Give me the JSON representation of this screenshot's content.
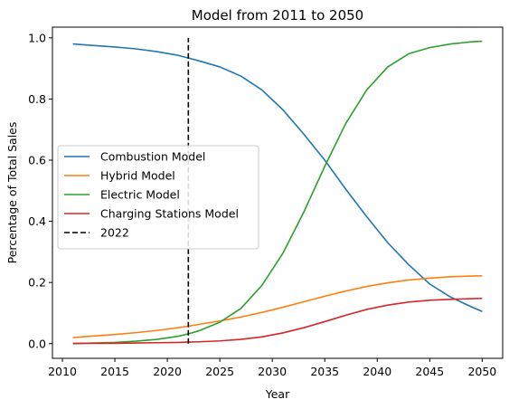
{
  "chart_data": {
    "type": "line",
    "title": "Model from 2011 to 2050",
    "xlabel": "Year",
    "ylabel": "Percentage of Total Sales",
    "xlim": [
      2009.05,
      2051.95
    ],
    "ylim": [
      -0.048,
      1.035
    ],
    "xticks": [
      2010,
      2015,
      2020,
      2025,
      2030,
      2035,
      2040,
      2045,
      2050
    ],
    "xtick_labels": [
      "2010",
      "2015",
      "2020",
      "2025",
      "2030",
      "2035",
      "2040",
      "2045",
      "2050"
    ],
    "yticks": [
      0.0,
      0.2,
      0.4,
      0.6,
      0.8,
      1.0
    ],
    "ytick_labels": [
      "0.0",
      "0.2",
      "0.4",
      "0.6",
      "0.8",
      "1.0"
    ],
    "legend_position": "center-left",
    "series": [
      {
        "name": "Combustion Model",
        "color": "#1f77b4",
        "style": "solid",
        "x": [
          2011,
          2013,
          2015,
          2017,
          2019,
          2021,
          2022,
          2023,
          2025,
          2027,
          2029,
          2031,
          2033,
          2035,
          2037,
          2039,
          2041,
          2043,
          2045,
          2047,
          2049,
          2050
        ],
        "y": [
          0.98,
          0.975,
          0.97,
          0.964,
          0.955,
          0.943,
          0.934,
          0.925,
          0.905,
          0.875,
          0.83,
          0.765,
          0.685,
          0.6,
          0.505,
          0.415,
          0.33,
          0.258,
          0.195,
          0.152,
          0.12,
          0.105
        ]
      },
      {
        "name": "Hybrid Model",
        "color": "#ff7f0e",
        "style": "solid",
        "x": [
          2011,
          2013,
          2015,
          2017,
          2019,
          2021,
          2022,
          2023,
          2025,
          2027,
          2029,
          2031,
          2033,
          2035,
          2037,
          2039,
          2041,
          2043,
          2045,
          2047,
          2049,
          2050
        ],
        "y": [
          0.02,
          0.025,
          0.03,
          0.036,
          0.043,
          0.052,
          0.057,
          0.063,
          0.074,
          0.087,
          0.102,
          0.119,
          0.137,
          0.155,
          0.172,
          0.187,
          0.199,
          0.208,
          0.214,
          0.219,
          0.221,
          0.222
        ]
      },
      {
        "name": "Electric Model",
        "color": "#2ca02c",
        "style": "solid",
        "x": [
          2011,
          2013,
          2015,
          2017,
          2019,
          2021,
          2022,
          2023,
          2025,
          2027,
          2029,
          2031,
          2033,
          2035,
          2037,
          2039,
          2041,
          2043,
          2045,
          2047,
          2049,
          2050
        ],
        "y": [
          0.0,
          0.002,
          0.004,
          0.008,
          0.014,
          0.024,
          0.032,
          0.042,
          0.07,
          0.115,
          0.19,
          0.295,
          0.43,
          0.58,
          0.72,
          0.83,
          0.905,
          0.948,
          0.968,
          0.98,
          0.987,
          0.989
        ]
      },
      {
        "name": "Charging Stations Model",
        "color": "#d62728",
        "style": "solid",
        "x": [
          2011,
          2013,
          2015,
          2017,
          2019,
          2021,
          2022,
          2023,
          2025,
          2027,
          2029,
          2031,
          2033,
          2035,
          2037,
          2039,
          2041,
          2043,
          2045,
          2047,
          2049,
          2050
        ],
        "y": [
          0.001,
          0.001,
          0.001,
          0.002,
          0.003,
          0.004,
          0.005,
          0.006,
          0.009,
          0.014,
          0.022,
          0.035,
          0.052,
          0.072,
          0.093,
          0.112,
          0.126,
          0.136,
          0.142,
          0.145,
          0.147,
          0.148
        ]
      },
      {
        "name": "2022",
        "color": "#000000",
        "style": "dashed",
        "x": [
          2022,
          2022
        ],
        "y": [
          0.0,
          1.0
        ]
      }
    ]
  }
}
